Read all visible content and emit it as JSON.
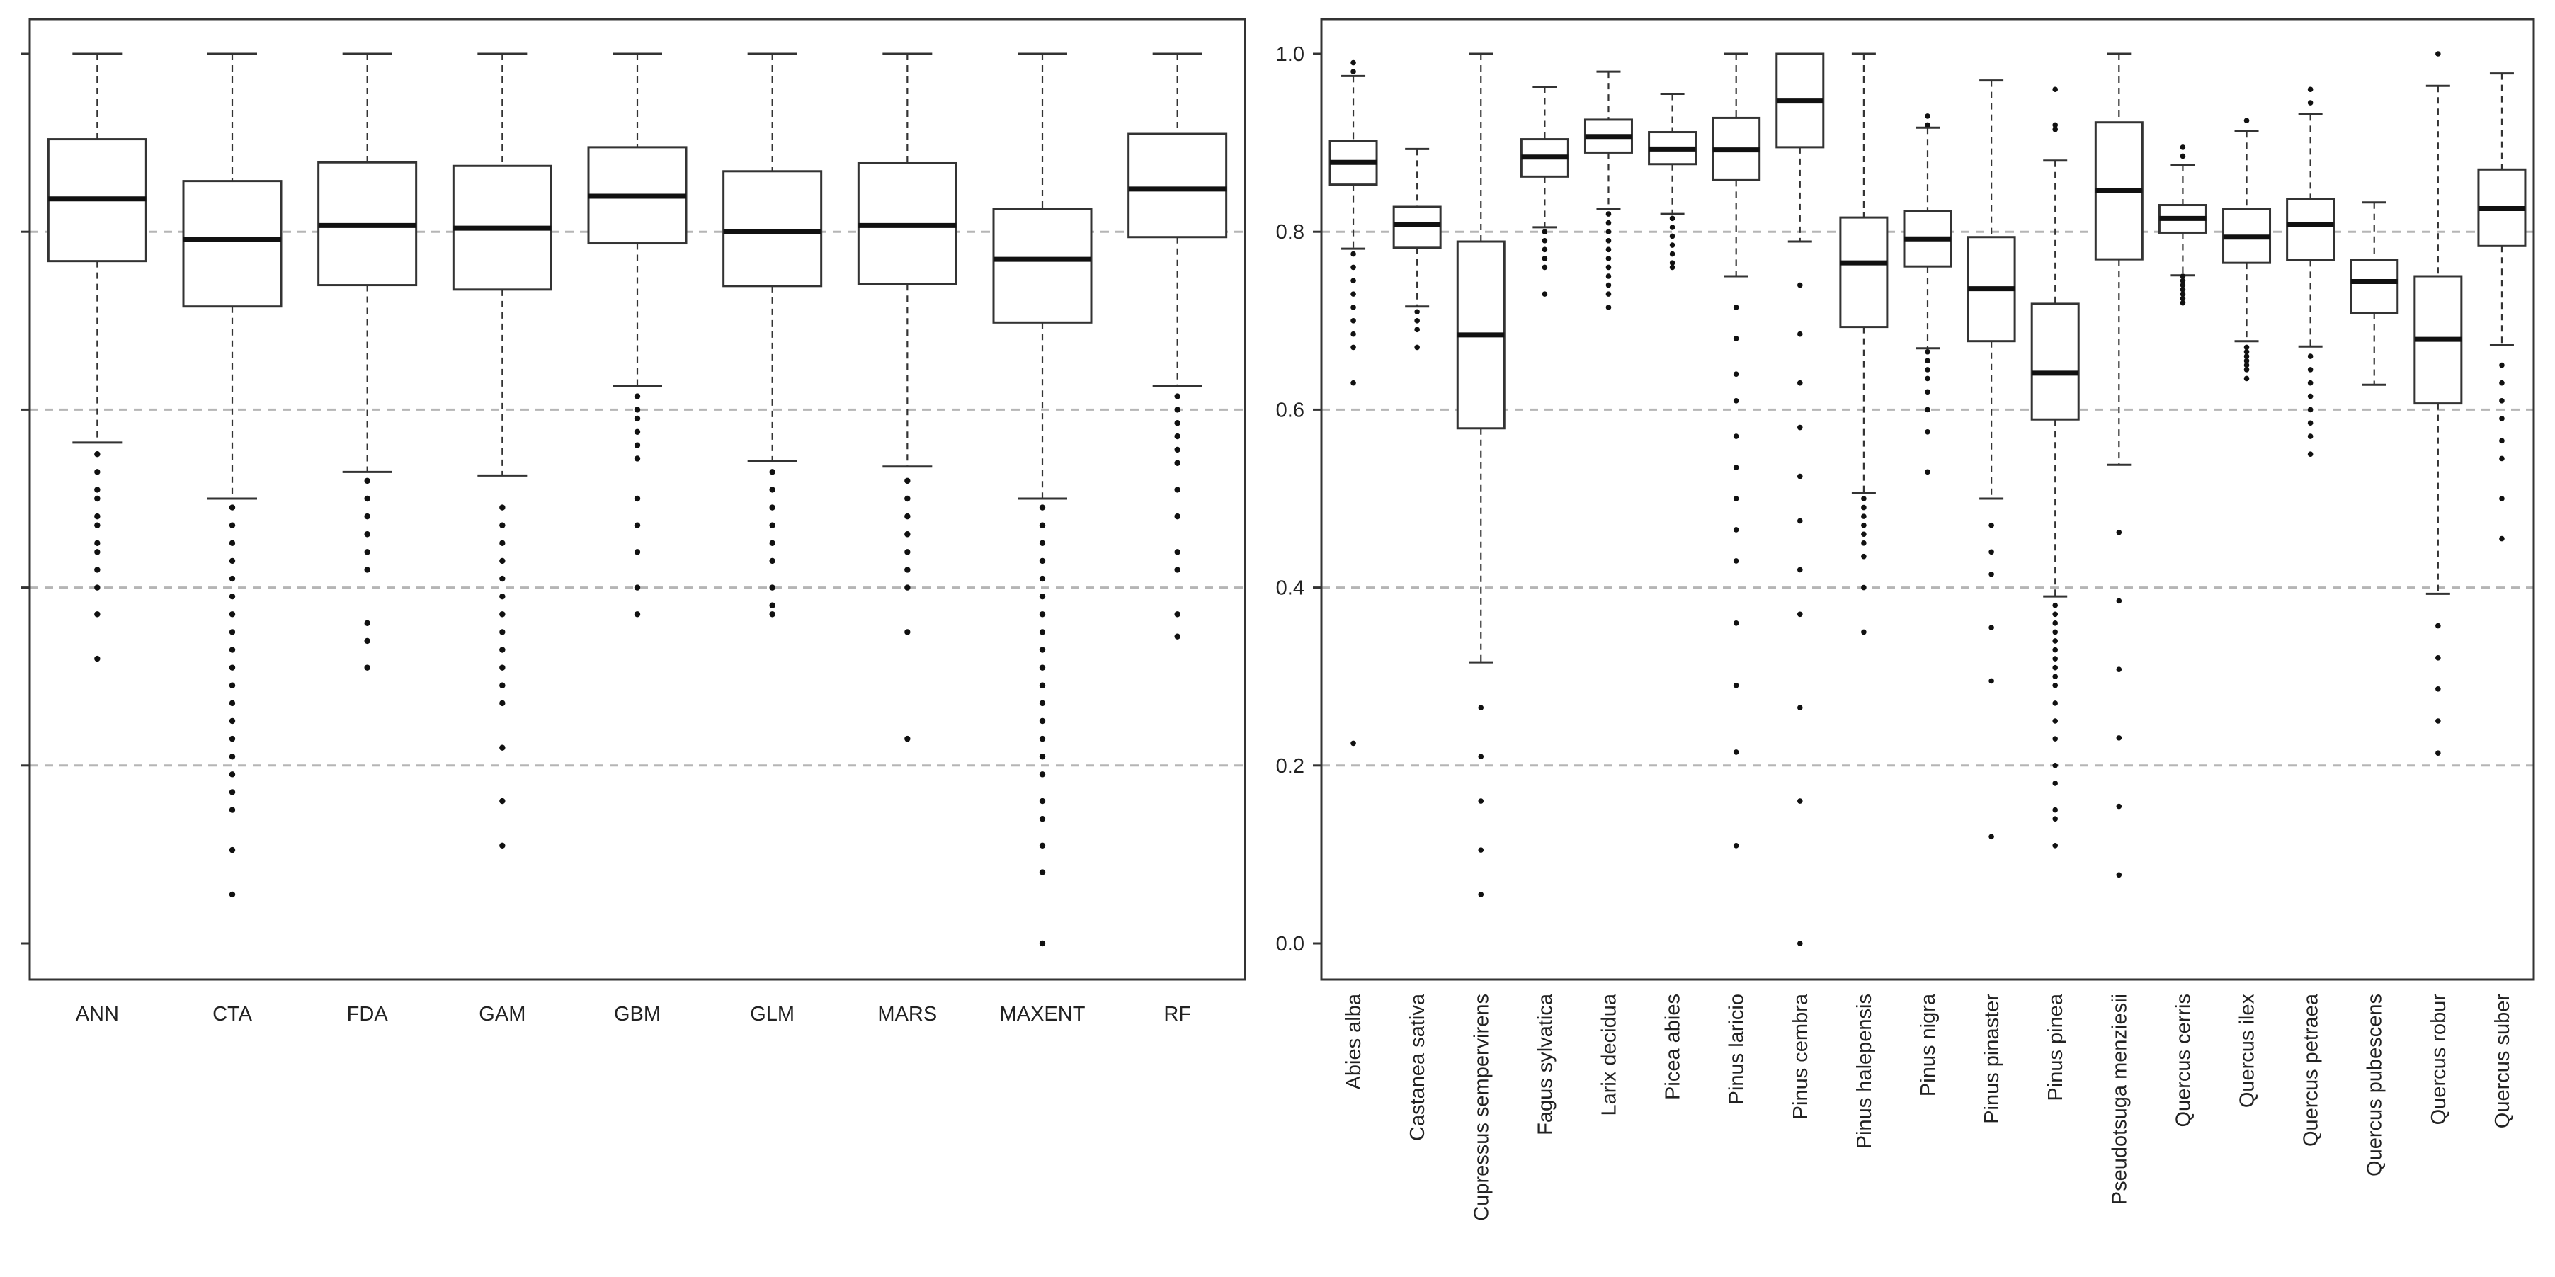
{
  "chart_data": [
    {
      "type": "boxplot",
      "title": "",
      "xlabel": "",
      "ylabel": "",
      "ylim": [
        0,
        1
      ],
      "grid": "horizontal dashed at 0.2 0.4 0.6 0.8",
      "y_ticks_labeled": false,
      "categories": [
        "ANN",
        "CTA",
        "FDA",
        "GAM",
        "GBM",
        "GLM",
        "MARS",
        "MAXENT",
        "RF"
      ],
      "boxes": [
        {
          "min": 0.563,
          "q1": 0.767,
          "median": 0.837,
          "q3": 0.904,
          "max": 1.0,
          "outliers": [
            0.55,
            0.53,
            0.51,
            0.5,
            0.48,
            0.47,
            0.45,
            0.44,
            0.42,
            0.4,
            0.37,
            0.32
          ]
        },
        {
          "min": 0.5,
          "q1": 0.716,
          "median": 0.791,
          "q3": 0.857,
          "max": 1.0,
          "outliers": [
            0.49,
            0.47,
            0.45,
            0.43,
            0.41,
            0.39,
            0.37,
            0.35,
            0.33,
            0.31,
            0.29,
            0.27,
            0.25,
            0.23,
            0.21,
            0.19,
            0.17,
            0.15,
            0.105,
            0.055
          ]
        },
        {
          "min": 0.53,
          "q1": 0.74,
          "median": 0.807,
          "q3": 0.878,
          "max": 1.0,
          "outliers": [
            0.52,
            0.5,
            0.48,
            0.46,
            0.44,
            0.42,
            0.36,
            0.34,
            0.31
          ]
        },
        {
          "min": 0.526,
          "q1": 0.735,
          "median": 0.804,
          "q3": 0.874,
          "max": 1.0,
          "outliers": [
            0.49,
            0.47,
            0.45,
            0.43,
            0.41,
            0.39,
            0.37,
            0.35,
            0.33,
            0.31,
            0.29,
            0.27,
            0.22,
            0.16,
            0.11
          ]
        },
        {
          "min": 0.627,
          "q1": 0.787,
          "median": 0.84,
          "q3": 0.895,
          "max": 1.0,
          "outliers": [
            0.615,
            0.6,
            0.59,
            0.575,
            0.56,
            0.545,
            0.5,
            0.47,
            0.44,
            0.4,
            0.37
          ]
        },
        {
          "min": 0.542,
          "q1": 0.739,
          "median": 0.8,
          "q3": 0.868,
          "max": 1.0,
          "outliers": [
            0.53,
            0.51,
            0.49,
            0.47,
            0.45,
            0.43,
            0.4,
            0.38,
            0.37
          ]
        },
        {
          "min": 0.536,
          "q1": 0.741,
          "median": 0.807,
          "q3": 0.877,
          "max": 1.0,
          "outliers": [
            0.52,
            0.5,
            0.48,
            0.46,
            0.44,
            0.42,
            0.4,
            0.35,
            0.23
          ]
        },
        {
          "min": 0.5,
          "q1": 0.698,
          "median": 0.769,
          "q3": 0.826,
          "max": 1.0,
          "outliers": [
            0.49,
            0.47,
            0.45,
            0.43,
            0.41,
            0.39,
            0.37,
            0.35,
            0.33,
            0.31,
            0.29,
            0.27,
            0.25,
            0.23,
            0.21,
            0.19,
            0.16,
            0.14,
            0.11,
            0.08,
            0.0
          ]
        },
        {
          "min": 0.627,
          "q1": 0.794,
          "median": 0.848,
          "q3": 0.91,
          "max": 1.0,
          "outliers": [
            0.615,
            0.6,
            0.585,
            0.57,
            0.555,
            0.54,
            0.51,
            0.48,
            0.44,
            0.42,
            0.37,
            0.345
          ]
        }
      ]
    },
    {
      "type": "boxplot",
      "title": "",
      "xlabel": "",
      "ylabel": "",
      "ylim": [
        0,
        1
      ],
      "grid": "horizontal dashed at 0.2 0.4 0.6 0.8",
      "y_ticks": [
        "0.0",
        "0.2",
        "0.4",
        "0.6",
        "0.8",
        "1.0"
      ],
      "categories": [
        "Abies alba",
        "Castanea sativa",
        "Cupressus sempervirens",
        "Fagus sylvatica",
        "Larix decidua",
        "Picea abies",
        "Pinus  laricio",
        "Pinus cembra",
        "Pinus halepensis",
        "Pinus nigra",
        "Pinus pinaster",
        "Pinus pinea",
        "Pseudotsuga menziesii",
        "Quercus cerris",
        "Quercus ilex",
        "Quercus petraea",
        "Quercus pubescens",
        "Quercus robur",
        "Quercus suber"
      ],
      "boxes": [
        {
          "min": 0.781,
          "q1": 0.853,
          "median": 0.878,
          "q3": 0.902,
          "max": 0.975,
          "outliers": [
            0.99,
            0.98,
            0.775,
            0.76,
            0.745,
            0.73,
            0.715,
            0.7,
            0.685,
            0.67,
            0.63,
            0.225
          ]
        },
        {
          "min": 0.716,
          "q1": 0.782,
          "median": 0.808,
          "q3": 0.828,
          "max": 0.893,
          "outliers": [
            0.71,
            0.7,
            0.69,
            0.67
          ]
        },
        {
          "min": 0.316,
          "q1": 0.579,
          "median": 0.684,
          "q3": 0.789,
          "max": 1.0,
          "outliers": [
            0.265,
            0.21,
            0.16,
            0.105,
            0.055
          ]
        },
        {
          "min": 0.805,
          "q1": 0.862,
          "median": 0.884,
          "q3": 0.904,
          "max": 0.963,
          "outliers": [
            0.8,
            0.79,
            0.78,
            0.77,
            0.76,
            0.73
          ]
        },
        {
          "min": 0.826,
          "q1": 0.889,
          "median": 0.907,
          "q3": 0.926,
          "max": 0.98,
          "outliers": [
            0.82,
            0.81,
            0.8,
            0.79,
            0.78,
            0.77,
            0.76,
            0.75,
            0.74,
            0.73,
            0.715
          ]
        },
        {
          "min": 0.82,
          "q1": 0.876,
          "median": 0.893,
          "q3": 0.912,
          "max": 0.955,
          "outliers": [
            0.815,
            0.805,
            0.795,
            0.785,
            0.775,
            0.765,
            0.76
          ]
        },
        {
          "min": 0.75,
          "q1": 0.858,
          "median": 0.892,
          "q3": 0.928,
          "max": 1.0,
          "outliers": [
            0.715,
            0.68,
            0.64,
            0.61,
            0.57,
            0.535,
            0.5,
            0.465,
            0.43,
            0.36,
            0.29,
            0.215,
            0.11
          ]
        },
        {
          "min": 0.789,
          "q1": 0.895,
          "median": 0.947,
          "q3": 1.0,
          "max": 1.0,
          "outliers": [
            0.74,
            0.685,
            0.63,
            0.58,
            0.525,
            0.475,
            0.42,
            0.37,
            0.265,
            0.16,
            0.0
          ]
        },
        {
          "min": 0.506,
          "q1": 0.693,
          "median": 0.765,
          "q3": 0.816,
          "max": 1.0,
          "outliers": [
            0.5,
            0.49,
            0.48,
            0.47,
            0.46,
            0.45,
            0.435,
            0.4,
            0.35
          ]
        },
        {
          "min": 0.669,
          "q1": 0.761,
          "median": 0.792,
          "q3": 0.823,
          "max": 0.917,
          "outliers": [
            0.93,
            0.92,
            0.665,
            0.655,
            0.645,
            0.635,
            0.62,
            0.6,
            0.575,
            0.53
          ]
        },
        {
          "min": 0.5,
          "q1": 0.677,
          "median": 0.736,
          "q3": 0.794,
          "max": 0.97,
          "outliers": [
            0.47,
            0.44,
            0.415,
            0.355,
            0.295,
            0.12
          ]
        },
        {
          "min": 0.39,
          "q1": 0.589,
          "median": 0.641,
          "q3": 0.719,
          "max": 0.88,
          "outliers": [
            0.96,
            0.92,
            0.915,
            0.38,
            0.37,
            0.36,
            0.35,
            0.34,
            0.33,
            0.32,
            0.31,
            0.3,
            0.29,
            0.27,
            0.25,
            0.23,
            0.2,
            0.18,
            0.15,
            0.14,
            0.11
          ]
        },
        {
          "min": 0.538,
          "q1": 0.769,
          "median": 0.846,
          "q3": 0.923,
          "max": 1.0,
          "outliers": [
            0.462,
            0.385,
            0.308,
            0.231,
            0.154,
            0.077
          ]
        },
        {
          "min": 0.751,
          "q1": 0.799,
          "median": 0.815,
          "q3": 0.83,
          "max": 0.875,
          "outliers": [
            0.895,
            0.885,
            0.75,
            0.745,
            0.74,
            0.735,
            0.73,
            0.725,
            0.72
          ]
        },
        {
          "min": 0.677,
          "q1": 0.765,
          "median": 0.794,
          "q3": 0.826,
          "max": 0.913,
          "outliers": [
            0.925,
            0.67,
            0.665,
            0.66,
            0.655,
            0.65,
            0.645,
            0.635
          ]
        },
        {
          "min": 0.671,
          "q1": 0.768,
          "median": 0.808,
          "q3": 0.837,
          "max": 0.932,
          "outliers": [
            0.96,
            0.945,
            0.66,
            0.645,
            0.63,
            0.615,
            0.6,
            0.585,
            0.57,
            0.55
          ]
        },
        {
          "min": 0.628,
          "q1": 0.709,
          "median": 0.744,
          "q3": 0.768,
          "max": 0.833,
          "outliers": []
        },
        {
          "min": 0.393,
          "q1": 0.607,
          "median": 0.679,
          "q3": 0.75,
          "max": 0.964,
          "outliers": [
            1.0,
            0.357,
            0.321,
            0.286,
            0.25,
            0.214
          ]
        },
        {
          "min": 0.673,
          "q1": 0.784,
          "median": 0.826,
          "q3": 0.87,
          "max": 0.978,
          "outliers": [
            0.65,
            0.63,
            0.61,
            0.59,
            0.565,
            0.545,
            0.5,
            0.455
          ]
        }
      ]
    }
  ]
}
